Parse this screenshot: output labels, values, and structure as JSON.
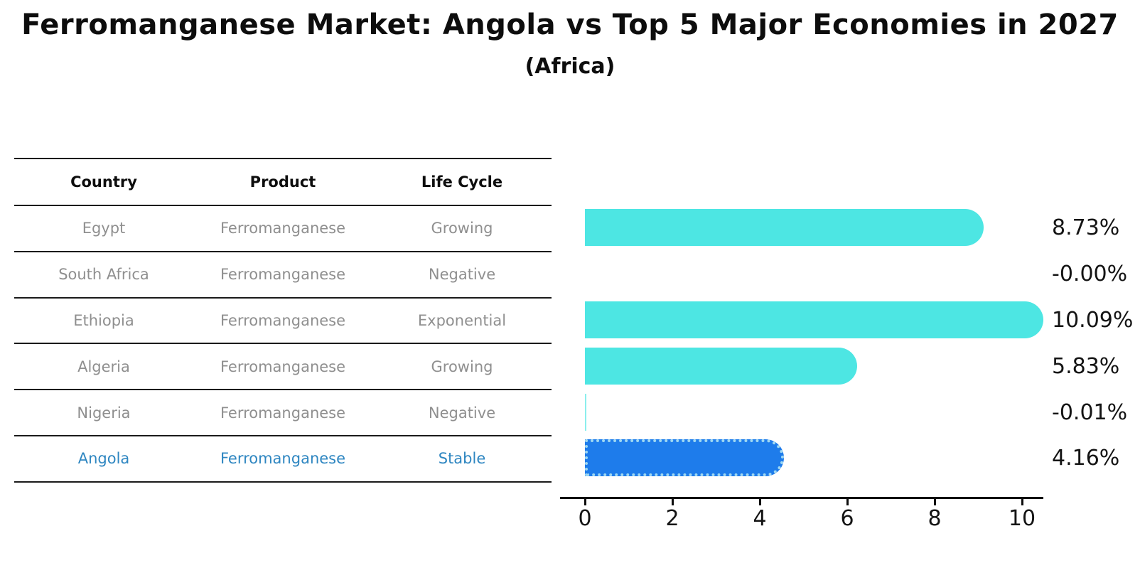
{
  "title": "Ferromanganese Market: Angola vs Top 5 Major Economies in 2027",
  "subtitle": "(Africa)",
  "table": {
    "headers": [
      "Country",
      "Product",
      "Life Cycle"
    ],
    "rows": [
      {
        "country": "Egypt",
        "product": "Ferromanganese",
        "life_cycle": "Growing",
        "highlight": false
      },
      {
        "country": "South Africa",
        "product": "Ferromanganese",
        "life_cycle": "Negative",
        "highlight": false
      },
      {
        "country": "Ethiopia",
        "product": "Ferromanganese",
        "life_cycle": "Exponential",
        "highlight": false
      },
      {
        "country": "Algeria",
        "product": "Ferromanganese",
        "life_cycle": "Growing",
        "highlight": false
      },
      {
        "country": "Nigeria",
        "product": "Ferromanganese",
        "life_cycle": "Negative",
        "highlight": false
      },
      {
        "country": "Angola",
        "product": "Ferromanganese",
        "life_cycle": "Stable",
        "highlight": true
      }
    ]
  },
  "chart_data": {
    "type": "bar",
    "orientation": "horizontal",
    "title": "Ferromanganese Market: Angola vs Top 5 Major Economies in 2027",
    "subtitle": "(Africa)",
    "categories": [
      "Egypt",
      "South Africa",
      "Ethiopia",
      "Algeria",
      "Nigeria",
      "Angola"
    ],
    "values": [
      8.73,
      -0.0,
      10.09,
      5.83,
      -0.01,
      4.16
    ],
    "value_labels": [
      "8.73%",
      "-0.00%",
      "10.09%",
      "5.83%",
      "-0.01%",
      "4.16%"
    ],
    "x_ticks": [
      "0",
      "2",
      "4",
      "6",
      "8",
      "10"
    ],
    "xlim": [
      -0.57,
      10.49
    ],
    "grid": false,
    "legend": false,
    "bar_color": "#4de6e3",
    "highlight_bar_color": "#1e7ceb",
    "highlight_index": 5,
    "highlight_text_color": "#2e86c1",
    "row_text_color": "#8f8f8f"
  }
}
